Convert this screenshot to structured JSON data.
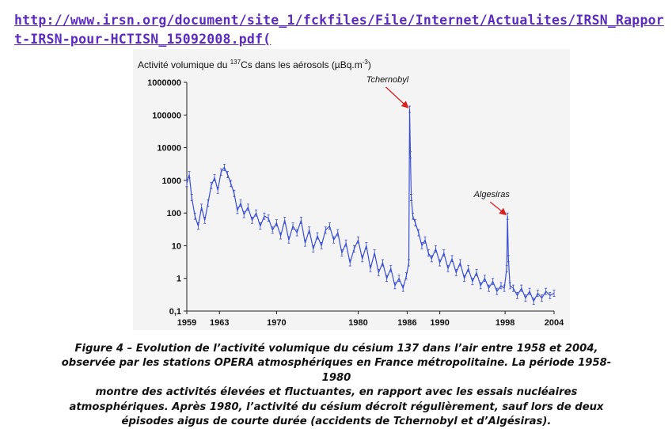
{
  "link": {
    "url": "http://www.irsn.org/document/site_1/fckfiles/File/Internet/Actualites/IRSN_Rapport-IRSN-pour-HCTISN_15092008.pdf("
  },
  "chart_data": {
    "type": "line",
    "title_pre": "Activité volumique du ",
    "title_sup": "137",
    "title_post": "Cs dans les aérosols (µBq.m",
    "title_unit_sup": "-3",
    "title_end": ")",
    "xlim": [
      1959,
      2004
    ],
    "ylim": [
      0.1,
      1000000
    ],
    "yscale": "log",
    "xticks": [
      "1959",
      "1963",
      "1970",
      "1980",
      "1986",
      "1990",
      "1998",
      "2004"
    ],
    "yticks": [
      "1000000",
      "100000",
      "10000",
      "1000",
      "100",
      "10",
      "1",
      "0,1"
    ],
    "line_color": "#3a4fd0",
    "series": [
      {
        "x": [
          1959.0,
          1959.3,
          1959.6,
          1960.0,
          1960.4,
          1960.8,
          1961.2,
          1961.6,
          1962.0,
          1962.4,
          1962.8,
          1963.2,
          1963.6,
          1964.0,
          1964.4,
          1964.8,
          1965.2,
          1965.6,
          1966.0,
          1966.5,
          1967.0,
          1967.5,
          1968.0,
          1968.5,
          1969.0,
          1969.5,
          1970.0,
          1970.5,
          1971.0,
          1971.5,
          1972.0,
          1972.5,
          1973.0,
          1973.5,
          1974.0,
          1974.5,
          1975.0,
          1975.5,
          1976.0,
          1976.5,
          1977.0,
          1977.5,
          1978.0,
          1978.5,
          1979.0,
          1979.5,
          1980.0,
          1980.5,
          1981.0,
          1981.5,
          1982.0,
          1982.5,
          1983.0,
          1983.5,
          1984.0,
          1984.5,
          1985.0,
          1985.5,
          1985.9,
          1986.2,
          1986.3,
          1986.4,
          1986.5,
          1986.7,
          1987.0,
          1987.4,
          1987.8,
          1988.2,
          1988.6,
          1989.0,
          1989.5,
          1990.0,
          1990.5,
          1991.0,
          1991.5,
          1992.0,
          1992.5,
          1993.0,
          1993.5,
          1994.0,
          1994.5,
          1995.0,
          1995.5,
          1996.0,
          1996.5,
          1997.0,
          1997.5,
          1997.9,
          1998.2,
          1998.3,
          1998.4,
          1998.6,
          1999.0,
          1999.5,
          2000.0,
          2000.5,
          2001.0,
          2001.5,
          2002.0,
          2002.5,
          2003.0,
          2003.5,
          2004.0
        ],
        "y": [
          800,
          1500,
          300,
          80,
          40,
          150,
          60,
          200,
          700,
          1200,
          500,
          1800,
          2500,
          1500,
          800,
          400,
          120,
          200,
          90,
          150,
          60,
          100,
          40,
          80,
          70,
          30,
          50,
          20,
          60,
          15,
          40,
          25,
          60,
          12,
          30,
          8,
          20,
          10,
          30,
          40,
          15,
          25,
          6,
          12,
          3,
          8,
          15,
          4,
          10,
          2,
          6,
          1.5,
          3,
          1,
          2,
          0.6,
          1,
          0.5,
          1.2,
          3,
          150000,
          6000,
          300,
          80,
          50,
          25,
          10,
          15,
          6,
          4,
          8,
          3,
          6,
          2,
          4,
          1.5,
          3,
          1,
          2,
          0.8,
          1.5,
          0.6,
          1,
          0.5,
          0.8,
          0.4,
          0.6,
          0.5,
          2,
          80,
          4,
          0.6,
          0.5,
          0.3,
          0.5,
          0.25,
          0.4,
          0.2,
          0.35,
          0.25,
          0.4,
          0.3,
          0.35
        ]
      }
    ],
    "annotations": [
      {
        "text": "Tchernobyl",
        "x": 1986.3,
        "y": 150000
      },
      {
        "text": "Algesiras",
        "x": 1998.3,
        "y": 80
      }
    ],
    "annotation_color": "#d62020"
  },
  "caption": {
    "lines": [
      "Figure 4 – Evolution de l’activité volumique du césium 137 dans l’air entre 1958 et 2004,",
      "observée par les stations OPERA atmosphériques en France métropolitaine. La période 1958-1980",
      "montre des activités élevées et fluctuantes, en rapport avec les essais nucléaires",
      "atmosphériques. Après 1980, l’activité du césium décroit régulièrement, sauf lors de deux",
      "épisodes aigus de courte durée (accidents de Tchernobyl et d’Algésiras)."
    ]
  }
}
